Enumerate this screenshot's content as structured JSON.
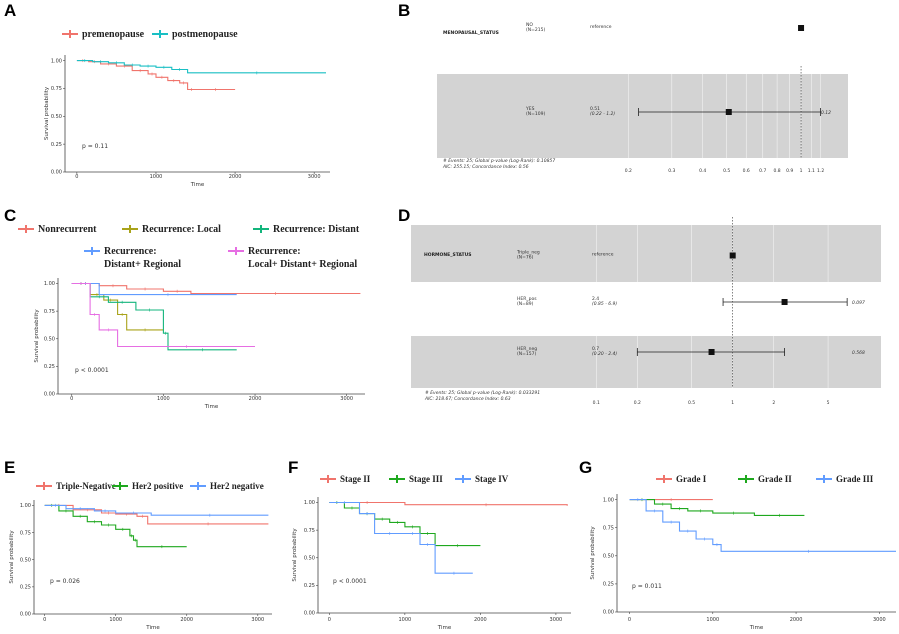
{
  "colors": {
    "red": "#f0746c",
    "teal": "#19bfc4",
    "olive": "#a9a31a",
    "green": "#13b57c",
    "blue": "#619cff",
    "magenta": "#e66ee3",
    "kmgreen": "#1ea81e",
    "gray": "#d3d3d3",
    "grid": "#ebebeb",
    "axis": "#444444"
  },
  "chart_data": [
    {
      "id": "A",
      "letter": "A",
      "type": "line",
      "legend": [
        "premenopause",
        "postmenopause"
      ],
      "xlabel": "Time",
      "ylabel": "Survival probability",
      "xticks": [
        0,
        1000,
        2000,
        3000
      ],
      "yticks": [
        "0.00",
        "0.25",
        "0.50",
        "0.75",
        "1.00"
      ],
      "xlim": [
        -150,
        3200
      ],
      "ylim": [
        0,
        1.05
      ],
      "pvalue": "p = 0.11",
      "series": [
        {
          "name": "premenopause",
          "color": "red",
          "x": [
            0,
            150,
            300,
            500,
            700,
            900,
            1000,
            1150,
            1300,
            1400,
            1500,
            2000
          ],
          "y": [
            1,
            0.99,
            0.97,
            0.95,
            0.91,
            0.88,
            0.85,
            0.82,
            0.8,
            0.74,
            0.74,
            0.74
          ]
        },
        {
          "name": "postmenopause",
          "color": "teal",
          "x": [
            0,
            200,
            400,
            600,
            800,
            1000,
            1200,
            1400,
            3150
          ],
          "y": [
            1,
            0.99,
            0.98,
            0.96,
            0.95,
            0.94,
            0.92,
            0.89,
            0.89
          ]
        }
      ]
    },
    {
      "id": "C",
      "letter": "C",
      "type": "line",
      "legend": [
        "Nonrecurrent",
        "Recurrence: Local",
        "Recurrence: Distant",
        "Recurrence:\nDistant+ Regional",
        "Recurrence:\nLocal+ Distant+ Regional"
      ],
      "xlabel": "Time",
      "ylabel": "Survival probability",
      "xticks": [
        0,
        1000,
        2000,
        3000
      ],
      "yticks": [
        "0.00",
        "0.25",
        "0.50",
        "0.75",
        "1.00"
      ],
      "xlim": [
        -150,
        3200
      ],
      "ylim": [
        0,
        1.05
      ],
      "pvalue": "p < 0.0001",
      "series": [
        {
          "name": "Nonrecurrent",
          "color": "red",
          "x": [
            0,
            300,
            600,
            1000,
            1300,
            3150
          ],
          "y": [
            1,
            0.98,
            0.95,
            0.93,
            0.91,
            0.91
          ]
        },
        {
          "name": "Recurrence: Local",
          "color": "olive",
          "x": [
            0,
            200,
            350,
            500,
            600,
            1000
          ],
          "y": [
            1,
            0.9,
            0.85,
            0.72,
            0.58,
            0.58
          ]
        },
        {
          "name": "Recurrence: Distant",
          "color": "green",
          "x": [
            0,
            200,
            400,
            700,
            1000,
            1050,
            1800
          ],
          "y": [
            1,
            0.88,
            0.83,
            0.76,
            0.55,
            0.4,
            0.4
          ]
        },
        {
          "name": "Recurrence: Distant+ Regional",
          "color": "blue",
          "x": [
            0,
            300,
            1800
          ],
          "y": [
            1,
            0.9,
            0.9
          ]
        },
        {
          "name": "Recurrence: Local+ Distant+ Regional",
          "color": "magenta",
          "x": [
            0,
            200,
            300,
            500,
            2000
          ],
          "y": [
            1,
            0.72,
            0.58,
            0.43,
            0.43
          ]
        }
      ]
    },
    {
      "id": "E",
      "letter": "E",
      "type": "line",
      "legend": [
        "Triple-Negative",
        "Her2 positive",
        "Her2 negative"
      ],
      "xlabel": "Time",
      "ylabel": "Survival probability",
      "xticks": [
        0,
        1000,
        2000,
        3000
      ],
      "yticks": [
        "0.00",
        "0.25",
        "0.50",
        "0.75",
        "1.00"
      ],
      "xlim": [
        -150,
        3200
      ],
      "ylim": [
        0,
        1.05
      ],
      "pvalue": "p = 0.026",
      "series": [
        {
          "name": "Triple-Negative",
          "color": "red",
          "x": [
            0,
            400,
            800,
            1000,
            1300,
            1450,
            3150
          ],
          "y": [
            1,
            0.96,
            0.93,
            0.92,
            0.9,
            0.83,
            0.83
          ]
        },
        {
          "name": "Her2 positive",
          "color": "kmgreen",
          "x": [
            0,
            200,
            400,
            600,
            800,
            1000,
            1200,
            1250,
            1300,
            2000
          ],
          "y": [
            1,
            0.95,
            0.9,
            0.85,
            0.82,
            0.78,
            0.72,
            0.68,
            0.62,
            0.62
          ]
        },
        {
          "name": "Her2 negative",
          "color": "blue",
          "x": [
            0,
            300,
            700,
            1000,
            1500,
            3150
          ],
          "y": [
            1,
            0.97,
            0.95,
            0.93,
            0.91,
            0.91
          ]
        }
      ]
    },
    {
      "id": "F",
      "letter": "F",
      "type": "line",
      "legend": [
        "Stage II",
        "Stage III",
        "Stage IV"
      ],
      "xlabel": "Time",
      "ylabel": "Survival probability",
      "xticks": [
        0,
        1000,
        2000,
        3000
      ],
      "yticks": [
        "0.00",
        "0.25",
        "0.50",
        "0.75",
        "1.00"
      ],
      "xlim": [
        -150,
        3200
      ],
      "ylim": [
        0,
        1.05
      ],
      "pvalue": "p < 0.0001",
      "series": [
        {
          "name": "Stage II",
          "color": "red",
          "x": [
            0,
            1000,
            3150
          ],
          "y": [
            1,
            0.98,
            0.97
          ]
        },
        {
          "name": "Stage III",
          "color": "kmgreen",
          "x": [
            0,
            200,
            400,
            600,
            800,
            1000,
            1200,
            1400,
            2000
          ],
          "y": [
            1,
            0.95,
            0.9,
            0.85,
            0.82,
            0.78,
            0.72,
            0.61,
            0.61
          ]
        },
        {
          "name": "Stage IV",
          "color": "blue",
          "x": [
            0,
            400,
            600,
            1000,
            1200,
            1400,
            1900
          ],
          "y": [
            1,
            0.9,
            0.72,
            0.72,
            0.62,
            0.36,
            0.36
          ]
        }
      ]
    },
    {
      "id": "G",
      "letter": "G",
      "type": "line",
      "legend": [
        "Grade I",
        "Grade II",
        "Grade III"
      ],
      "xlabel": "Time",
      "ylabel": "Survival probability",
      "xticks": [
        0,
        1000,
        2000,
        3000
      ],
      "yticks": [
        "0.00",
        "0.25",
        "0.50",
        "0.75",
        "1.00"
      ],
      "xlim": [
        -150,
        3200
      ],
      "ylim": [
        0,
        1.05
      ],
      "pvalue": "p = 0.011",
      "series": [
        {
          "name": "Grade I",
          "color": "red",
          "x": [
            0,
            1000
          ],
          "y": [
            1,
            1
          ]
        },
        {
          "name": "Grade II",
          "color": "kmgreen",
          "x": [
            0,
            300,
            500,
            700,
            1000,
            1500,
            2100
          ],
          "y": [
            1,
            0.96,
            0.92,
            0.9,
            0.88,
            0.86,
            0.86
          ]
        },
        {
          "name": "Grade III",
          "color": "blue",
          "x": [
            0,
            200,
            400,
            600,
            800,
            1000,
            1100,
            3200
          ],
          "y": [
            1,
            0.9,
            0.8,
            0.72,
            0.65,
            0.6,
            0.54,
            0.54
          ]
        }
      ]
    }
  ],
  "forest_B": {
    "letter": "B",
    "variable": "MENOPAUSAL_STATUS",
    "rows": [
      {
        "level": "NO",
        "n": "(N=215)",
        "text": "reference",
        "hr": 1,
        "shaded": false
      },
      {
        "level": "YES",
        "n": "(N=109)",
        "text": "0.51",
        "ci": "(0.22 - 1.2)",
        "hr": 0.51,
        "lo": 0.22,
        "hi": 1.2,
        "p": "0.12",
        "shaded": true
      }
    ],
    "footnote1": "# Events: 25; Global p-value (Log-Rank): 0.10857",
    "footnote2": "AIC: 255.15; Concordance Index: 0.56",
    "ticks": [
      "0.2",
      "0.3",
      "0.4",
      "0.5",
      "0.6",
      "0.7",
      "0.8",
      "0.9",
      "1",
      "1.1",
      "1.2"
    ]
  },
  "forest_D": {
    "letter": "D",
    "variable": "HORMONE_STATUS",
    "rows": [
      {
        "level": "Triple_neg",
        "n": "(N=76)",
        "text": "reference",
        "hr": 1,
        "shaded": true
      },
      {
        "level": "HER_pos",
        "n": "(N=89)",
        "text": "2.4",
        "ci": "(0.85 - 6.9)",
        "hr": 2.4,
        "lo": 0.85,
        "hi": 6.9,
        "p": "0.097",
        "shaded": false
      },
      {
        "level": "HER_neg",
        "n": "(N=157)",
        "text": "0.7",
        "ci": "(0.20 - 2.4)",
        "hr": 0.7,
        "lo": 0.2,
        "hi": 2.4,
        "p": "0.568",
        "shaded": true
      }
    ],
    "footnote1": "# Events: 25; Global p-value (Log-Rank): 0.033291",
    "footnote2": "AIC: 218.67; Concordance Index: 0.63",
    "ticks": [
      "0.1",
      "0.2",
      "0.5",
      "1",
      "2",
      "5"
    ]
  }
}
